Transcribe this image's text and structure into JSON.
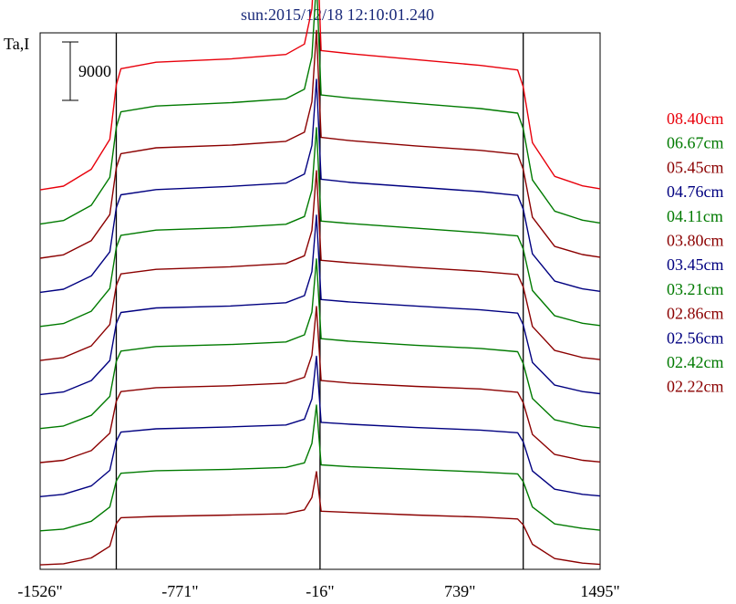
{
  "chart_data": {
    "type": "line",
    "title": "sun:2015/12/18 12:10:01.240",
    "ylabel": "Ta,I",
    "scale_bar_label": "9000",
    "scale_bar_value": 9000,
    "x_ticks": [
      "-1526\"",
      "-771\"",
      "-16\"",
      "739\"",
      "1495\""
    ],
    "x_tick_values": [
      -1526,
      -771,
      -16,
      739,
      1495
    ],
    "xlim": [
      -1526,
      1495
    ],
    "vertical_lines": [
      -1115,
      -16,
      1080
    ],
    "series": [
      {
        "name": "02.22cm",
        "color": "#8b0000",
        "profile": [
          [
            -1526,
            120
          ],
          [
            -1400,
            300
          ],
          [
            -1250,
            1200
          ],
          [
            -1150,
            3000
          ],
          [
            -1115,
            6500
          ],
          [
            -1090,
            7400
          ],
          [
            -900,
            7600
          ],
          [
            -500,
            7800
          ],
          [
            -200,
            8000
          ],
          [
            -100,
            8600
          ],
          [
            -60,
            10500
          ],
          [
            -35,
            14500
          ],
          [
            -10,
            8400
          ],
          [
            150,
            8200
          ],
          [
            500,
            7800
          ],
          [
            850,
            7500
          ],
          [
            1050,
            7200
          ],
          [
            1080,
            6300
          ],
          [
            1130,
            3300
          ],
          [
            1250,
            1100
          ],
          [
            1400,
            400
          ],
          [
            1495,
            200
          ]
        ]
      },
      {
        "name": "02.42cm",
        "color": "#007a00",
        "profile": [
          [
            -1526,
            120
          ],
          [
            -1400,
            400
          ],
          [
            -1250,
            1600
          ],
          [
            -1150,
            3800
          ],
          [
            -1115,
            7800
          ],
          [
            -1090,
            9000
          ],
          [
            -900,
            9400
          ],
          [
            -500,
            9600
          ],
          [
            -200,
            9900
          ],
          [
            -100,
            10600
          ],
          [
            -60,
            13600
          ],
          [
            -35,
            19500
          ],
          [
            -10,
            10300
          ],
          [
            150,
            10000
          ],
          [
            500,
            9600
          ],
          [
            850,
            9200
          ],
          [
            1050,
            8900
          ],
          [
            1080,
            7700
          ],
          [
            1130,
            3800
          ],
          [
            1250,
            1200
          ],
          [
            1400,
            500
          ],
          [
            1495,
            220
          ]
        ]
      },
      {
        "name": "02.56cm",
        "color": "#000080",
        "profile": [
          [
            -1526,
            150
          ],
          [
            -1400,
            500
          ],
          [
            -1250,
            1800
          ],
          [
            -1150,
            4200
          ],
          [
            -1115,
            8700
          ],
          [
            -1090,
            10100
          ],
          [
            -900,
            10600
          ],
          [
            -500,
            10900
          ],
          [
            -200,
            11200
          ],
          [
            -100,
            12100
          ],
          [
            -60,
            15200
          ],
          [
            -35,
            21800
          ],
          [
            -10,
            11600
          ],
          [
            150,
            11300
          ],
          [
            500,
            10800
          ],
          [
            850,
            10400
          ],
          [
            1050,
            10000
          ],
          [
            1080,
            8600
          ],
          [
            1130,
            4100
          ],
          [
            1250,
            1300
          ],
          [
            1400,
            500
          ],
          [
            1495,
            250
          ]
        ]
      },
      {
        "name": "02.86cm",
        "color": "#8b0000",
        "profile": [
          [
            -1526,
            150
          ],
          [
            -1400,
            500
          ],
          [
            -1250,
            2000
          ],
          [
            -1150,
            4700
          ],
          [
            -1115,
            9600
          ],
          [
            -1090,
            11100
          ],
          [
            -900,
            11700
          ],
          [
            -500,
            12000
          ],
          [
            -200,
            12400
          ],
          [
            -100,
            13300
          ],
          [
            -60,
            16700
          ],
          [
            -35,
            24200
          ],
          [
            -10,
            12800
          ],
          [
            150,
            12400
          ],
          [
            500,
            11900
          ],
          [
            850,
            11500
          ],
          [
            1050,
            11000
          ],
          [
            1080,
            9400
          ],
          [
            1130,
            4500
          ],
          [
            1250,
            1400
          ],
          [
            1400,
            500
          ],
          [
            1495,
            250
          ]
        ]
      },
      {
        "name": "03.21cm",
        "color": "#007a00",
        "profile": [
          [
            -1526,
            150
          ],
          [
            -1400,
            550
          ],
          [
            -1250,
            2200
          ],
          [
            -1150,
            5100
          ],
          [
            -1115,
            10500
          ],
          [
            -1090,
            12100
          ],
          [
            -900,
            12800
          ],
          [
            -500,
            13100
          ],
          [
            -200,
            13500
          ],
          [
            -100,
            14600
          ],
          [
            -60,
            18100
          ],
          [
            -35,
            26300
          ],
          [
            -10,
            14000
          ],
          [
            150,
            13600
          ],
          [
            500,
            13000
          ],
          [
            850,
            12500
          ],
          [
            1050,
            12000
          ],
          [
            1080,
            10200
          ],
          [
            1130,
            4800
          ],
          [
            1250,
            1500
          ],
          [
            1400,
            550
          ],
          [
            1495,
            270
          ]
        ]
      },
      {
        "name": "03.45cm",
        "color": "#000080",
        "profile": [
          [
            -1526,
            150
          ],
          [
            -1400,
            550
          ],
          [
            -1250,
            2300
          ],
          [
            -1150,
            5400
          ],
          [
            -1115,
            11100
          ],
          [
            -1090,
            12800
          ],
          [
            -900,
            13500
          ],
          [
            -500,
            13800
          ],
          [
            -200,
            14300
          ],
          [
            -100,
            15400
          ],
          [
            -60,
            19100
          ],
          [
            -35,
            27800
          ],
          [
            -10,
            14800
          ],
          [
            150,
            14400
          ],
          [
            500,
            13800
          ],
          [
            850,
            13200
          ],
          [
            1050,
            12700
          ],
          [
            1080,
            10900
          ],
          [
            1130,
            5100
          ],
          [
            1250,
            1600
          ],
          [
            1400,
            600
          ],
          [
            1495,
            280
          ]
        ]
      },
      {
        "name": "03.80cm",
        "color": "#8b0000",
        "profile": [
          [
            -1526,
            150
          ],
          [
            -1400,
            600
          ],
          [
            -1250,
            2400
          ],
          [
            -1150,
            5700
          ],
          [
            -1115,
            11700
          ],
          [
            -1090,
            13500
          ],
          [
            -900,
            14200
          ],
          [
            -500,
            14600
          ],
          [
            -200,
            15100
          ],
          [
            -100,
            16300
          ],
          [
            -60,
            20200
          ],
          [
            -35,
            29400
          ],
          [
            -10,
            15600
          ],
          [
            150,
            15200
          ],
          [
            500,
            14500
          ],
          [
            850,
            13900
          ],
          [
            1050,
            13400
          ],
          [
            1080,
            11500
          ],
          [
            1130,
            5400
          ],
          [
            1250,
            1700
          ],
          [
            1400,
            600
          ],
          [
            1495,
            290
          ]
        ]
      },
      {
        "name": "04.11cm",
        "color": "#007a00",
        "profile": [
          [
            -1526,
            160
          ],
          [
            -1400,
            600
          ],
          [
            -1250,
            2500
          ],
          [
            -1150,
            6000
          ],
          [
            -1115,
            12300
          ],
          [
            -1090,
            14200
          ],
          [
            -900,
            15000
          ],
          [
            -500,
            15400
          ],
          [
            -200,
            15900
          ],
          [
            -100,
            17100
          ],
          [
            -60,
            21200
          ],
          [
            -35,
            30800
          ],
          [
            -10,
            16400
          ],
          [
            150,
            16000
          ],
          [
            500,
            15300
          ],
          [
            850,
            14600
          ],
          [
            1050,
            14100
          ],
          [
            1080,
            12100
          ],
          [
            1130,
            5700
          ],
          [
            1250,
            1800
          ],
          [
            1400,
            650
          ],
          [
            1495,
            300
          ]
        ]
      },
      {
        "name": "04.76cm",
        "color": "#000080",
        "profile": [
          [
            -1526,
            170
          ],
          [
            -1400,
            650
          ],
          [
            -1250,
            2700
          ],
          [
            -1150,
            6400
          ],
          [
            -1115,
            13200
          ],
          [
            -1090,
            15200
          ],
          [
            -900,
            16000
          ],
          [
            -500,
            16500
          ],
          [
            -200,
            17000
          ],
          [
            -100,
            18400
          ],
          [
            -60,
            22800
          ],
          [
            -35,
            33000
          ],
          [
            -10,
            17600
          ],
          [
            150,
            17100
          ],
          [
            500,
            16400
          ],
          [
            850,
            15700
          ],
          [
            1050,
            15100
          ],
          [
            1080,
            13000
          ],
          [
            1130,
            6100
          ],
          [
            1250,
            1900
          ],
          [
            1400,
            700
          ],
          [
            1495,
            320
          ]
        ]
      },
      {
        "name": "05.45cm",
        "color": "#8b0000",
        "profile": [
          [
            -1526,
            180
          ],
          [
            -1400,
            700
          ],
          [
            -1250,
            2900
          ],
          [
            -1150,
            6900
          ],
          [
            -1115,
            14100
          ],
          [
            -1090,
            16300
          ],
          [
            -900,
            17200
          ],
          [
            -500,
            17600
          ],
          [
            -200,
            18200
          ],
          [
            -100,
            19600
          ],
          [
            -60,
            24300
          ],
          [
            -35,
            35300
          ],
          [
            -10,
            18800
          ],
          [
            150,
            18300
          ],
          [
            500,
            17500
          ],
          [
            850,
            16800
          ],
          [
            1050,
            16200
          ],
          [
            1080,
            13900
          ],
          [
            1130,
            6500
          ],
          [
            1250,
            2000
          ],
          [
            1400,
            750
          ],
          [
            1495,
            340
          ]
        ]
      },
      {
        "name": "06.67cm",
        "color": "#007a00",
        "profile": [
          [
            -1526,
            200
          ],
          [
            -1400,
            750
          ],
          [
            -1250,
            3100
          ],
          [
            -1150,
            7400
          ],
          [
            -1115,
            15100
          ],
          [
            -1090,
            17500
          ],
          [
            -900,
            18400
          ],
          [
            -500,
            18900
          ],
          [
            -200,
            19500
          ],
          [
            -100,
            21000
          ],
          [
            -60,
            26000
          ],
          [
            -35,
            37800
          ],
          [
            -10,
            20100
          ],
          [
            150,
            19600
          ],
          [
            500,
            18800
          ],
          [
            850,
            18000
          ],
          [
            1050,
            17300
          ],
          [
            1080,
            14900
          ],
          [
            1130,
            7000
          ],
          [
            1250,
            2200
          ],
          [
            1400,
            800
          ],
          [
            1495,
            360
          ]
        ]
      },
      {
        "name": "08.40cm",
        "color": "#e8000b",
        "profile": [
          [
            -1526,
            220
          ],
          [
            -1400,
            800
          ],
          [
            -1250,
            3400
          ],
          [
            -1150,
            8000
          ],
          [
            -1115,
            16400
          ],
          [
            -1090,
            18900
          ],
          [
            -900,
            19900
          ],
          [
            -500,
            20400
          ],
          [
            -200,
            21100
          ],
          [
            -100,
            22700
          ],
          [
            -60,
            28100
          ],
          [
            -35,
            40800
          ],
          [
            -10,
            21700
          ],
          [
            150,
            21200
          ],
          [
            500,
            20300
          ],
          [
            850,
            19400
          ],
          [
            1050,
            18700
          ],
          [
            1080,
            16100
          ],
          [
            1130,
            7500
          ],
          [
            1250,
            2300
          ],
          [
            1400,
            850
          ],
          [
            1495,
            390
          ]
        ]
      }
    ]
  }
}
